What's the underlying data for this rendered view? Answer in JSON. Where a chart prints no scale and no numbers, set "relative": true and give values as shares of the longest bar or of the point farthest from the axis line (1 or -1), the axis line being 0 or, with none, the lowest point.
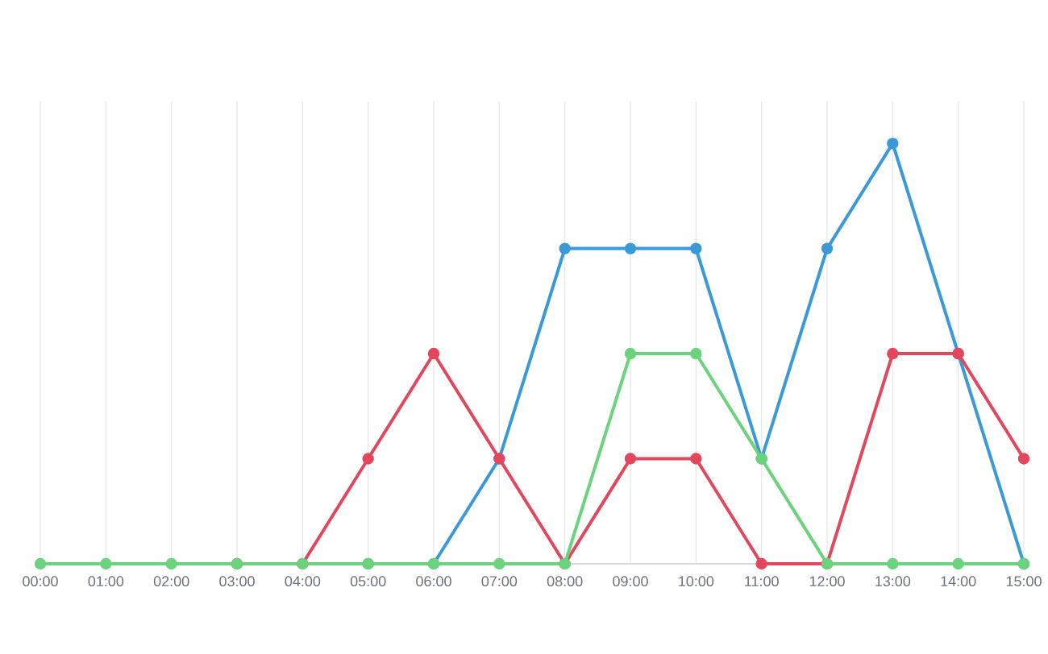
{
  "chart_data": {
    "type": "line",
    "relative": true,
    "grid": true,
    "marker": "circle",
    "line_style": "solid",
    "categories": [
      "00:00",
      "01:00",
      "02:00",
      "03:00",
      "04:00",
      "05:00",
      "06:00",
      "07:00",
      "08:00",
      "09:00",
      "10:00",
      "11:00",
      "12:00",
      "13:00",
      "14:00",
      "15:00"
    ],
    "series": [
      {
        "color": "#3a9ad9",
        "values": [
          null,
          null,
          null,
          null,
          null,
          0,
          0,
          0.25,
          0.75,
          0.75,
          0.75,
          0.25,
          0.75,
          1,
          0.5,
          0
        ]
      },
      {
        "color": "#e2475d",
        "values": [
          null,
          null,
          null,
          0,
          0,
          0.25,
          0.5,
          0.25,
          0,
          0.25,
          0.25,
          0,
          0,
          0.5,
          0.5,
          0.25
        ]
      },
      {
        "color": "#6bd27d",
        "values": [
          0,
          0,
          0,
          0,
          0,
          0,
          0,
          0,
          0,
          0.5,
          0.5,
          0.25,
          0,
          0,
          0,
          0
        ]
      }
    ]
  }
}
